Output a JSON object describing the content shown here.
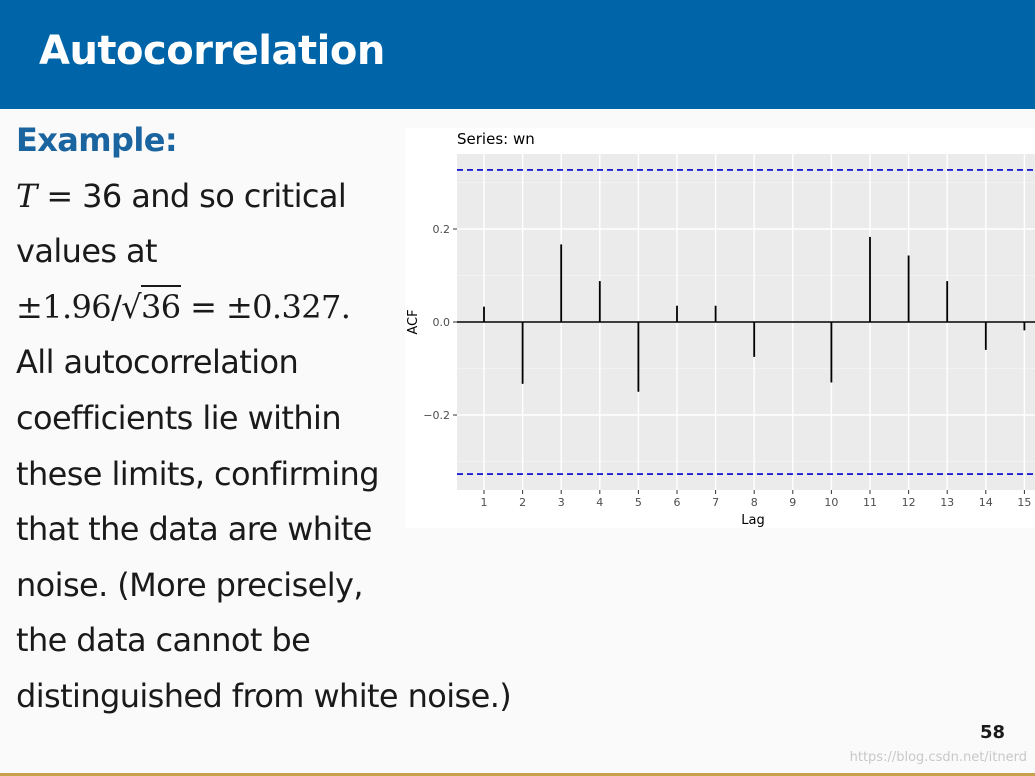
{
  "slide": {
    "title": "Autocorrelation",
    "page_number": "58",
    "watermark": "https://blog.csdn.net/itnerd"
  },
  "body": {
    "heading": "Example:",
    "lines": [
      {
        "t_symbol": "T",
        "rest": " = 36 and so critical"
      },
      {
        "text": "values at"
      },
      {
        "pm1": "±1.96/",
        "sqrt_sign": "√",
        "sqrt_arg": "36",
        "eq": " = ",
        "pm2": "±0.327."
      },
      {
        "text": "All autocorrelation"
      },
      {
        "text": "coefficients lie within"
      },
      {
        "text": "these limits, confirming"
      },
      {
        "text": "that the data are white"
      },
      {
        "text": "noise. (More precisely,"
      },
      {
        "text": "the data cannot be"
      },
      {
        "text": "distinguished from white noise.)"
      }
    ]
  },
  "chart_data": {
    "type": "bar",
    "title": "Series: wn",
    "xlabel": "Lag",
    "ylabel": "ACF",
    "x": [
      1,
      2,
      3,
      4,
      5,
      6,
      7,
      8,
      9,
      10,
      11,
      12,
      13,
      14,
      15
    ],
    "values": [
      0.033,
      -0.133,
      0.167,
      0.088,
      -0.15,
      0.035,
      0.035,
      -0.075,
      0.0,
      -0.13,
      0.183,
      0.143,
      0.088,
      -0.06,
      -0.018
    ],
    "yticks": [
      -0.2,
      0.0,
      0.2
    ],
    "ytick_labels": [
      "−0.2",
      "0.0",
      "0.2"
    ],
    "critical_value": 0.327,
    "ylim": [
      -0.36,
      0.36
    ],
    "grid": true,
    "colors": {
      "panel": "#ebebeb",
      "grid": "#ffffff",
      "bars": "#000000",
      "bounds": "#0000cc"
    }
  }
}
